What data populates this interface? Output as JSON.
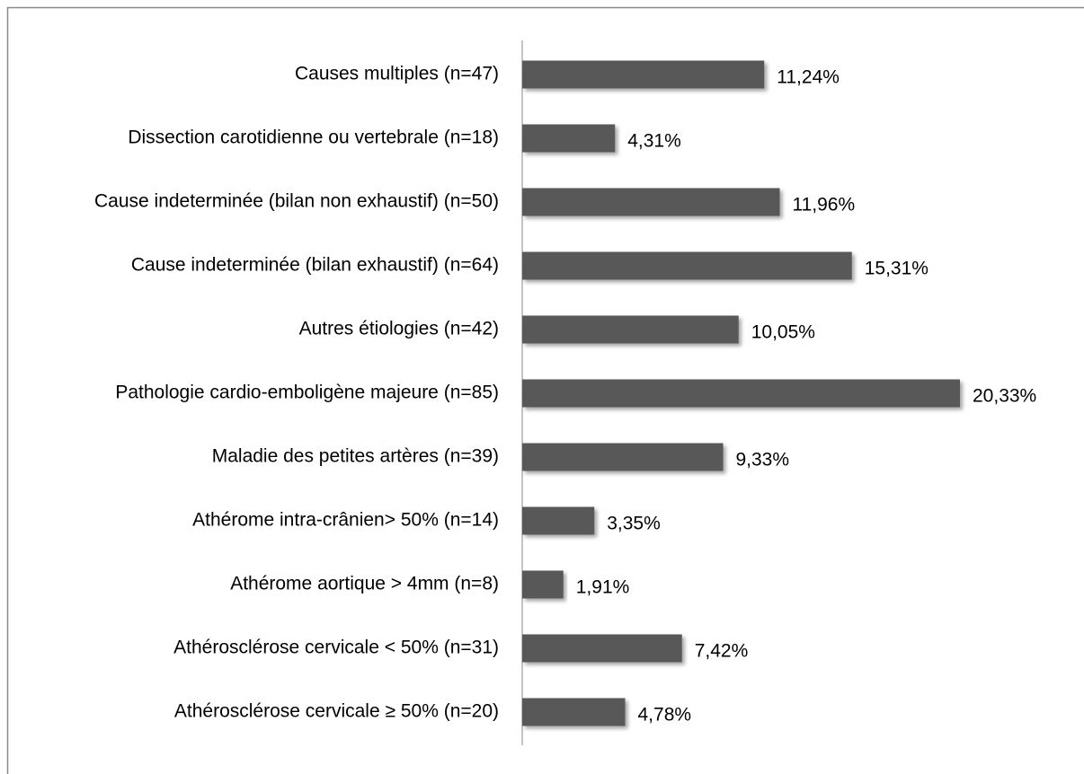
{
  "chart_data": {
    "type": "bar",
    "orientation": "horizontal",
    "categories": [
      "Causes multiples (n=47)",
      "Dissection carotidienne ou vertebrale (n=18)",
      "Cause indeterminée (bilan non exhaustif) (n=50)",
      "Cause indeterminée (bilan exhaustif) (n=64)",
      "Autres étiologies (n=42)",
      "Pathologie cardio-emboligène majeure (n=85)",
      "Maladie des petites artères (n=39)",
      "Athérome intra-crânien> 50% (n=14)",
      "Athérome aortique > 4mm (n=8)",
      "Athérosclérose cervicale < 50% (n=31)",
      "Athérosclérose cervicale ≥ 50% (n=20)"
    ],
    "values": [
      11.24,
      4.31,
      11.96,
      15.31,
      10.05,
      20.33,
      9.33,
      3.35,
      1.91,
      7.42,
      4.78
    ],
    "value_labels": [
      "11,24%",
      "4,31%",
      "11,96%",
      "15,31%",
      "10,05%",
      "20,33%",
      "9,33%",
      "3,35%",
      "1,91%",
      "7,42%",
      "4,78%"
    ],
    "color": "#595959"
  }
}
